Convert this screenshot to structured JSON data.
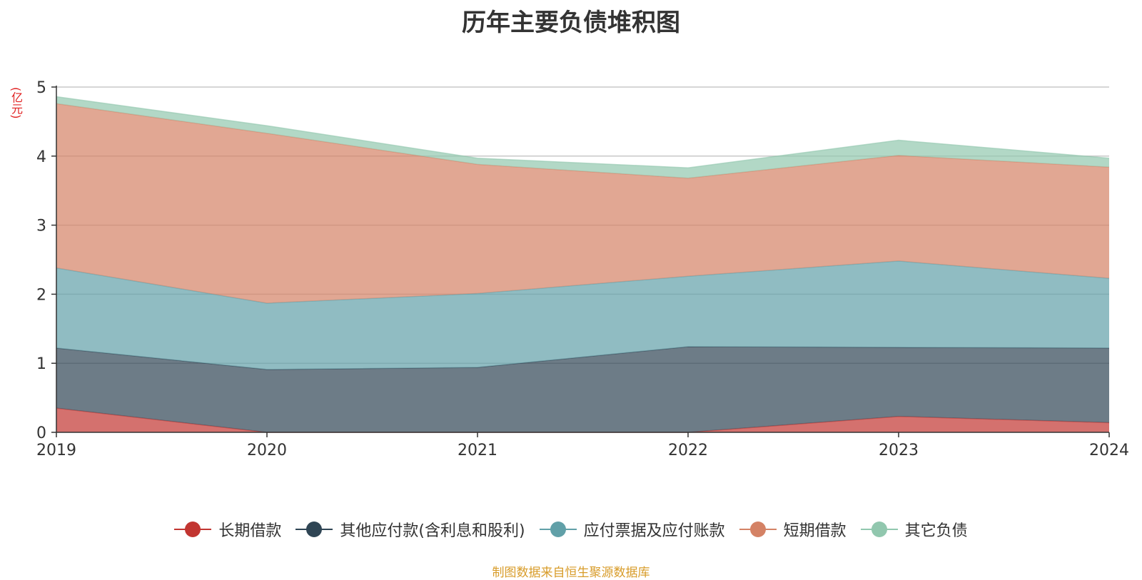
{
  "title": "历年主要负债堆积图",
  "source_note": "制图数据来自恒生聚源数据库",
  "chart_data": {
    "type": "area",
    "stacked": true,
    "title": "历年主要负债堆积图",
    "ylabel": "(亿元)",
    "xlabel": "",
    "categories": [
      "2019",
      "2020",
      "2021",
      "2022",
      "2023",
      "2024"
    ],
    "ylim": [
      0,
      5
    ],
    "yticks": [
      0,
      1,
      2,
      3,
      4,
      5
    ],
    "grid": true,
    "legend_position": "bottom",
    "series": [
      {
        "name": "长期借款",
        "color": "#c23531",
        "values": [
          0.35,
          0.0,
          0.0,
          0.0,
          0.23,
          0.14
        ]
      },
      {
        "name": "其他应付款(含利息和股利)",
        "color": "#2f4554",
        "values": [
          0.87,
          0.91,
          0.94,
          1.24,
          1.0,
          1.08
        ]
      },
      {
        "name": "应付票据及应付账款",
        "color": "#61a0a8",
        "values": [
          1.16,
          0.96,
          1.07,
          1.02,
          1.25,
          1.01
        ]
      },
      {
        "name": "短期借款",
        "color": "#d48265",
        "values": [
          2.38,
          2.46,
          1.87,
          1.42,
          1.53,
          1.61
        ]
      },
      {
        "name": "其它负债",
        "color": "#91c7ae",
        "values": [
          0.1,
          0.11,
          0.09,
          0.15,
          0.22,
          0.13
        ]
      }
    ]
  }
}
